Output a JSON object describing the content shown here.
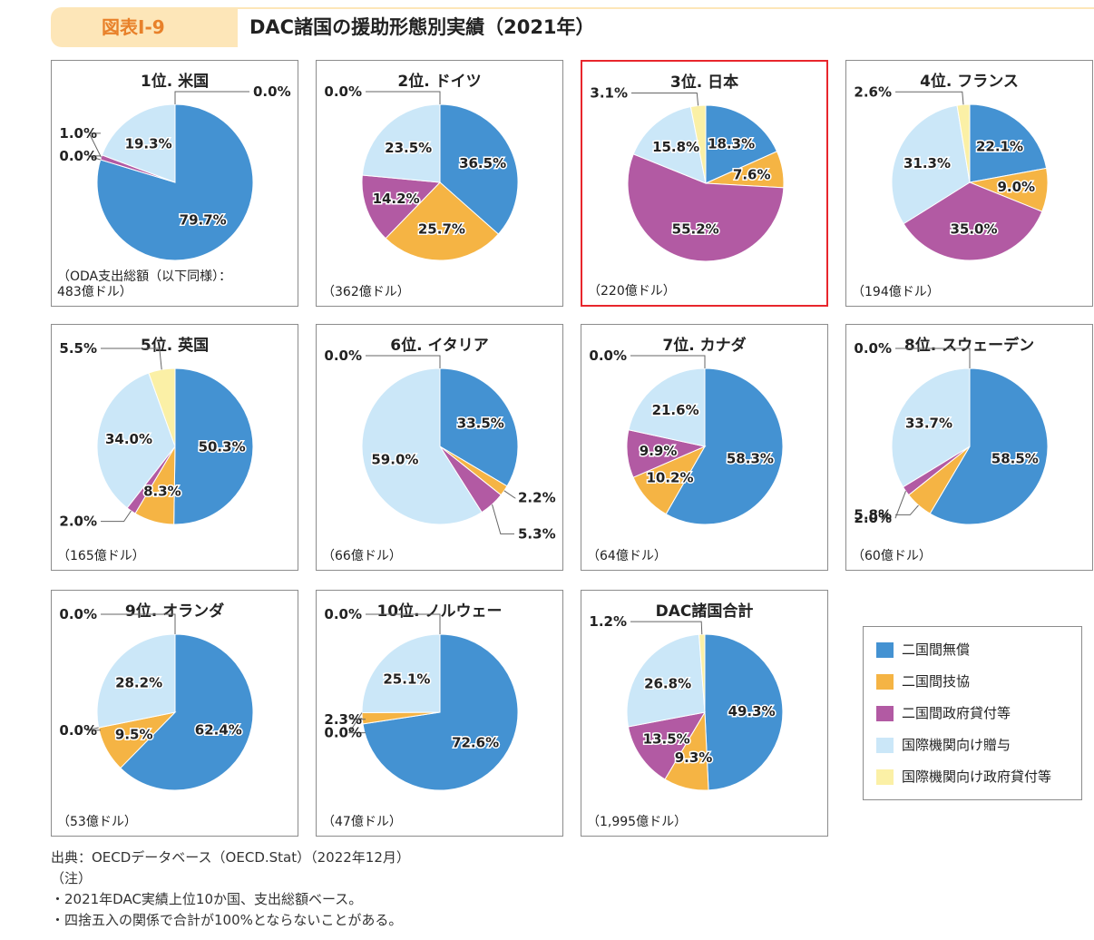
{
  "header": {
    "figure_label": "図表Ⅰ-9",
    "title": "DAC諸国の援助形態別実績（2021年）"
  },
  "colors": {
    "bilateral_grant": "#4492d2",
    "bilateral_tech": "#f5b444",
    "bilateral_loan": "#b25aa3",
    "intl_grant": "#cbe7f8",
    "intl_loan": "#fbf0a6"
  },
  "legend": [
    {
      "key": "bilateral_grant",
      "label": "二国間無償"
    },
    {
      "key": "bilateral_tech",
      "label": "二国間技協"
    },
    {
      "key": "bilateral_loan",
      "label": "二国間政府貸付等"
    },
    {
      "key": "intl_grant",
      "label": "国際機関向け贈与"
    },
    {
      "key": "intl_loan",
      "label": "国際機関向け政府貸付等"
    }
  ],
  "chart_data": [
    {
      "type": "pie",
      "title": "1位.  米国",
      "total": "（ODA支出総額（以下同様）：\n483億ドル）",
      "highlight": false,
      "values": [
        79.7,
        0.0,
        1.0,
        19.3,
        0.0
      ],
      "labels": [
        "79.7%",
        "0.0%",
        "1.0%",
        "19.3%",
        "0.0%"
      ]
    },
    {
      "type": "pie",
      "title": "2位.  ドイツ",
      "total": "（362億ドル）",
      "highlight": false,
      "values": [
        36.5,
        25.7,
        14.2,
        23.5,
        0.0
      ],
      "labels": [
        "36.5%",
        "25.7%",
        "14.2%",
        "23.5%",
        "0.0%"
      ]
    },
    {
      "type": "pie",
      "title": "3位.  日本",
      "total": "（220億ドル）",
      "highlight": true,
      "values": [
        18.3,
        7.6,
        55.2,
        15.8,
        3.1
      ],
      "labels": [
        "18.3%",
        "7.6%",
        "55.2%",
        "15.8%",
        "3.1%"
      ]
    },
    {
      "type": "pie",
      "title": "4位.  フランス",
      "total": "（194億ドル）",
      "highlight": false,
      "values": [
        22.1,
        9.0,
        35.0,
        31.3,
        2.6
      ],
      "labels": [
        "22.1%",
        "9.0%",
        "35.0%",
        "31.3%",
        "2.6%"
      ]
    },
    {
      "type": "pie",
      "title": "5位.  英国",
      "total": "（165億ドル）",
      "highlight": false,
      "values": [
        50.3,
        8.3,
        2.0,
        34.0,
        5.5
      ],
      "labels": [
        "50.3%",
        "8.3%",
        "2.0%",
        "34.0%",
        "5.5%"
      ]
    },
    {
      "type": "pie",
      "title": "6位.  イタリア",
      "total": "（66億ドル）",
      "highlight": false,
      "values": [
        33.5,
        2.2,
        5.3,
        59.0,
        0.0
      ],
      "labels": [
        "33.5%",
        "2.2%",
        "5.3%",
        "59.0%",
        "0.0%"
      ]
    },
    {
      "type": "pie",
      "title": "7位.  カナダ",
      "total": "（64億ドル）",
      "highlight": false,
      "values": [
        58.3,
        10.2,
        9.9,
        21.6,
        0.0
      ],
      "labels": [
        "58.3%",
        "10.2%",
        "9.9%",
        "21.6%",
        "0.0%"
      ]
    },
    {
      "type": "pie",
      "title": "8位.  スウェーデン",
      "total": "（60億ドル）",
      "highlight": false,
      "values": [
        58.5,
        5.8,
        2.0,
        33.7,
        0.0
      ],
      "labels": [
        "58.5%",
        "5.8%",
        "2.0%",
        "33.7%",
        "0.0%"
      ]
    },
    {
      "type": "pie",
      "title": "9位.  オランダ",
      "total": "（53億ドル）",
      "highlight": false,
      "values": [
        62.4,
        9.5,
        0.0,
        28.2,
        0.0
      ],
      "labels": [
        "62.4%",
        "9.5%",
        "0.0%",
        "28.2%",
        "0.0%"
      ]
    },
    {
      "type": "pie",
      "title": "10位.  ノルウェー",
      "total": "（47億ドル）",
      "highlight": false,
      "values": [
        72.6,
        2.3,
        0.0,
        25.1,
        0.0
      ],
      "labels": [
        "72.6%",
        "2.3%",
        "0.0%",
        "25.1%",
        "0.0%"
      ]
    },
    {
      "type": "pie",
      "title": "DAC諸国合計",
      "total": "（1,995億ドル）",
      "highlight": false,
      "values": [
        49.3,
        9.3,
        13.5,
        26.8,
        1.2
      ],
      "labels": [
        "49.3%",
        "9.3%",
        "13.5%",
        "26.8%",
        "1.2%"
      ]
    }
  ],
  "footer": {
    "source": "出典：OECDデータベース（OECD.Stat）（2022年12月）",
    "note_heading": "（注）",
    "notes": [
      "・2021年DAC実績上位10か国、支出総額ベース。",
      "・四捨五入の関係で合計が100%とならないことがある。"
    ]
  }
}
